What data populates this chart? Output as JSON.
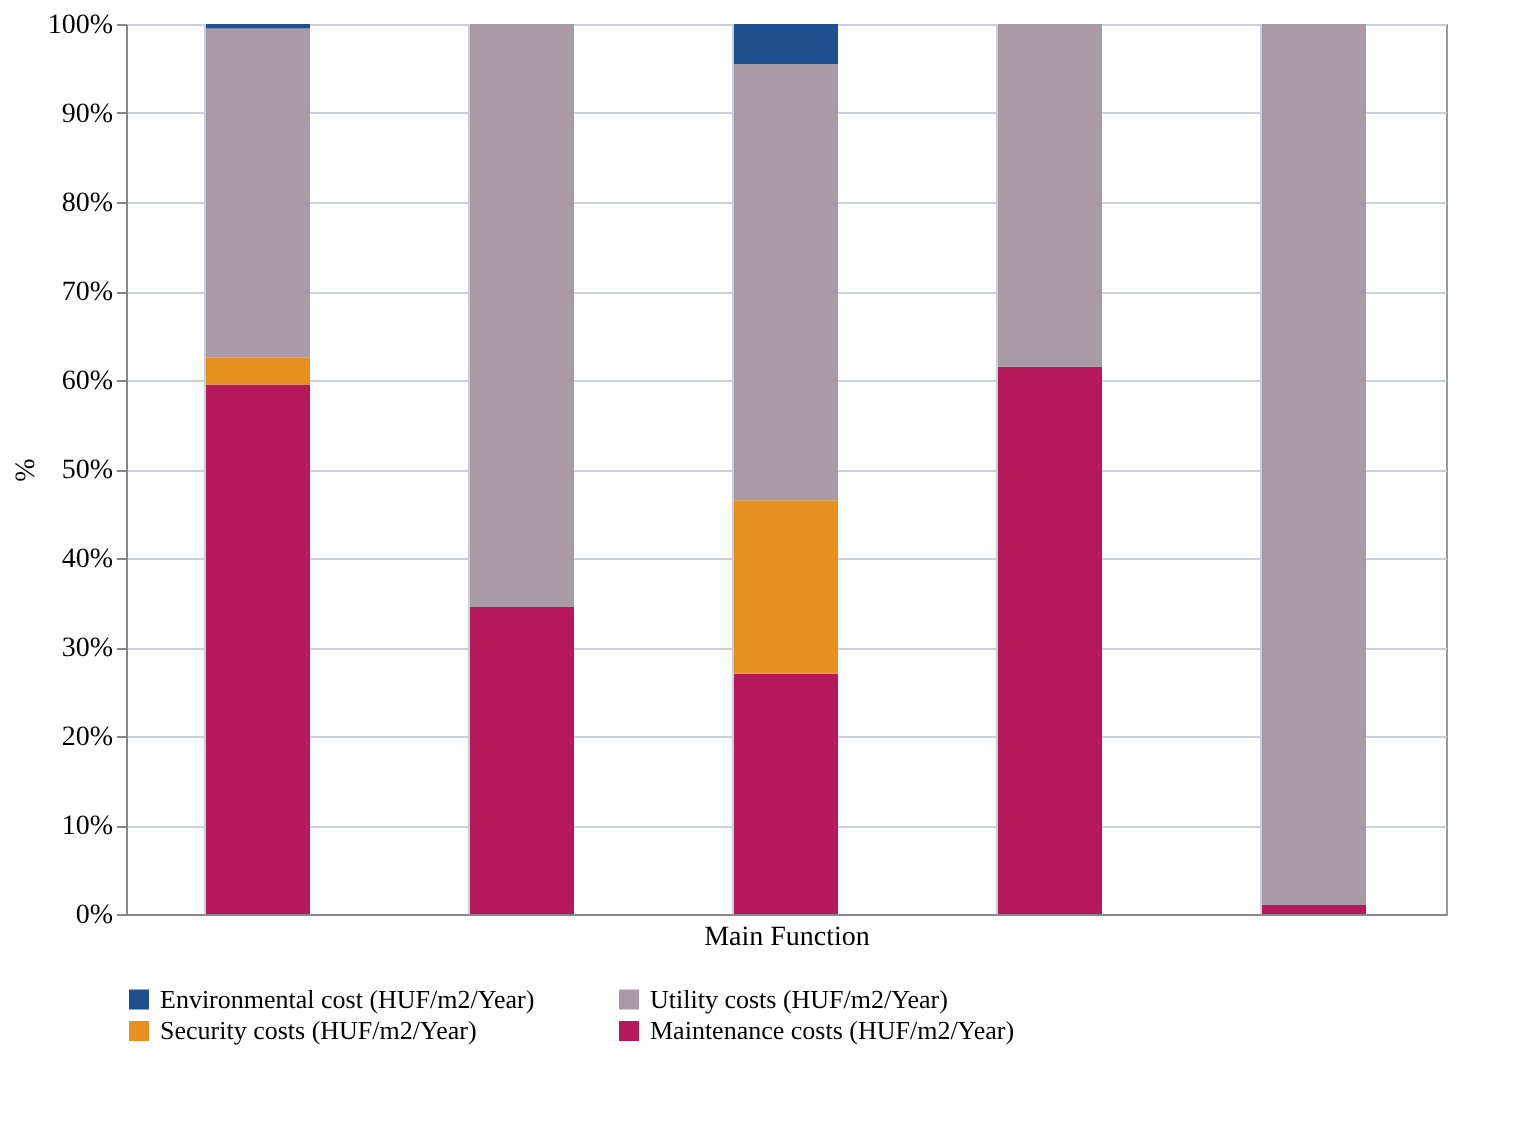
{
  "chart_data": {
    "type": "bar",
    "stacked": true,
    "xlabel": "Main Function",
    "ylabel": "%",
    "categories": [
      null,
      null,
      null,
      null,
      null
    ],
    "series": [
      {
        "name": "Maintenance costs (HUF/m2/Year)",
        "color": "#b5195a",
        "values": [
          59.5,
          34.5,
          27,
          61.5,
          1
        ]
      },
      {
        "name": "Security costs (HUF/m2/Year)",
        "color": "#e8901f",
        "values": [
          3,
          null,
          19.5,
          null,
          null
        ]
      },
      {
        "name": "Utility costs (HUF/m2/Year)",
        "color": "#a99aa6",
        "values": [
          37,
          65.5,
          49,
          38.5,
          99
        ]
      },
      {
        "name": "Environmental cost (HUF/m2/Year)",
        "color": "#1f4f8f",
        "values": [
          0.5,
          null,
          4.5,
          null,
          null
        ]
      }
    ],
    "ylim": [
      0,
      100
    ],
    "yticks": [
      {
        "value": 0,
        "label": "0%"
      },
      {
        "value": 10,
        "label": "10%"
      },
      {
        "value": 20,
        "label": "20%"
      },
      {
        "value": 30,
        "label": "30%"
      },
      {
        "value": 40,
        "label": "40%"
      },
      {
        "value": 50,
        "label": "50%"
      },
      {
        "value": 60,
        "label": "60%"
      },
      {
        "value": 70,
        "label": "70%"
      },
      {
        "value": 80,
        "label": "80%"
      },
      {
        "value": 90,
        "label": "90%"
      },
      {
        "value": 100,
        "label": "100%"
      }
    ],
    "grid": true,
    "legend": "bottom",
    "tick_labels": "y"
  }
}
